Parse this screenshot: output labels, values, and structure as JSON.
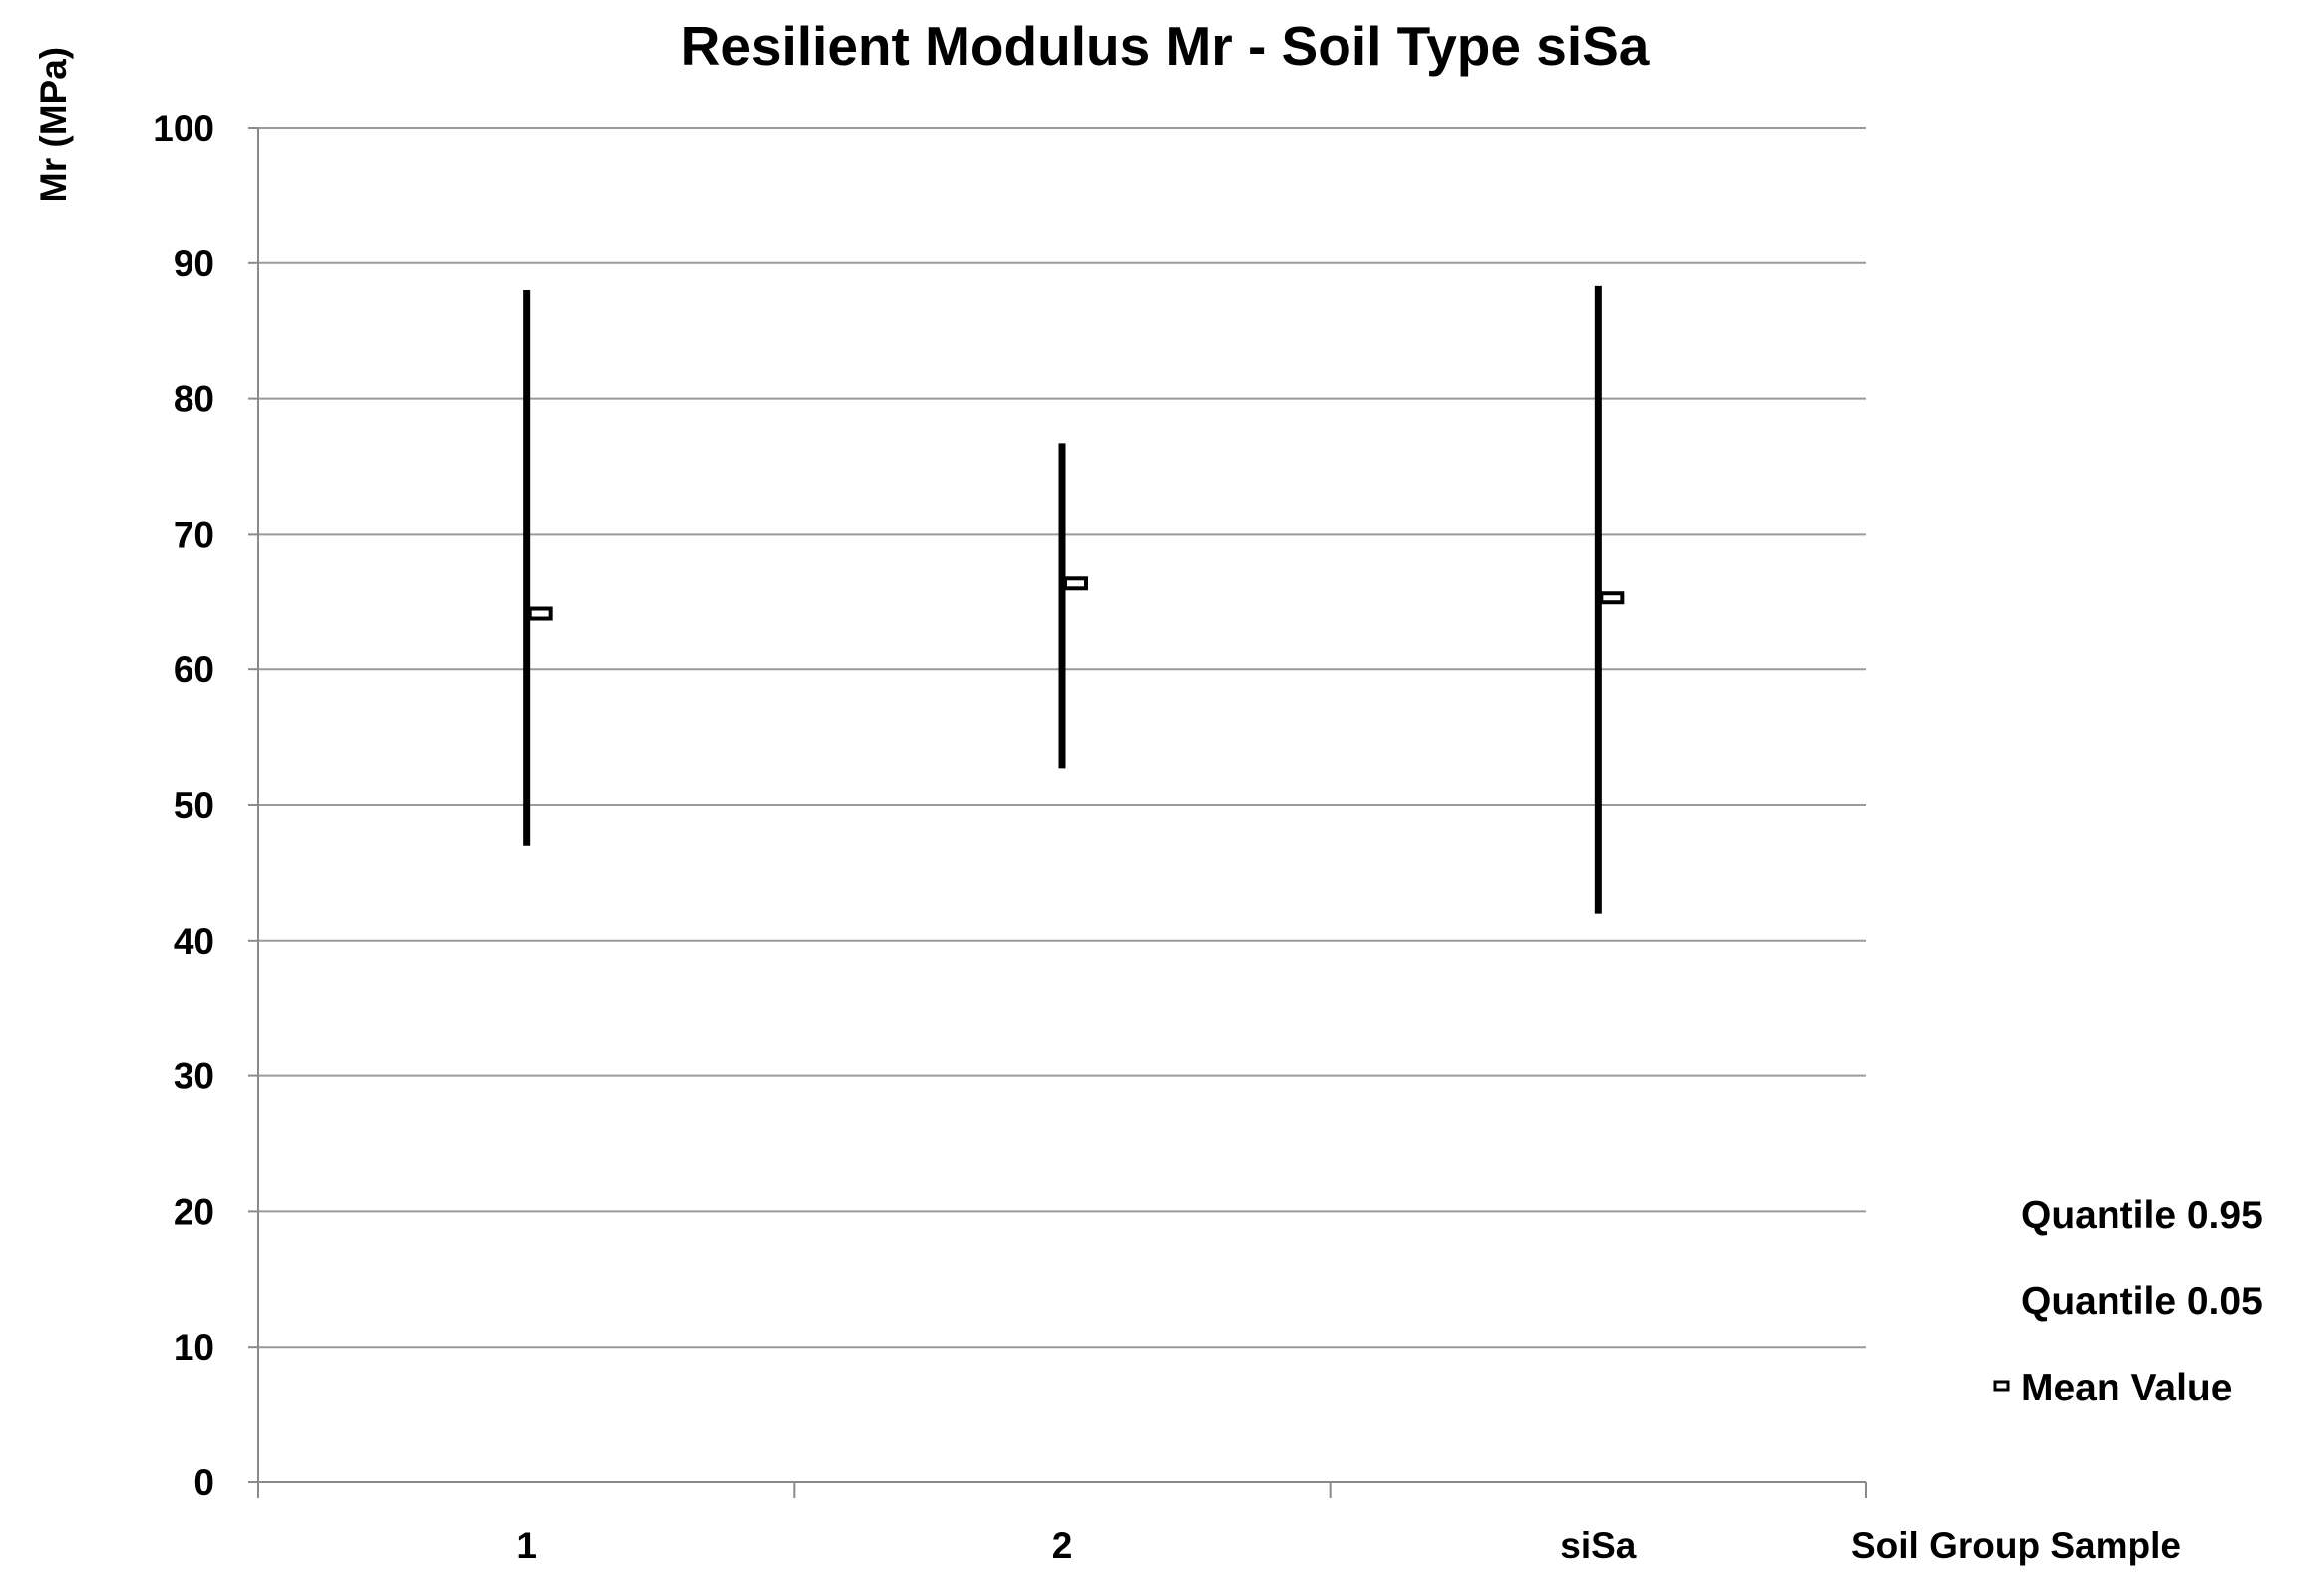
{
  "chart_data": {
    "type": "high-low-mean",
    "title": "Resilient Modulus Mr - Soil Type siSa",
    "ylabel": "Mr (MPa)",
    "xlabel": "Soil  Group Sample",
    "ylim": [
      0,
      100
    ],
    "yticks": [
      0,
      10,
      20,
      30,
      40,
      50,
      60,
      70,
      80,
      90,
      100
    ],
    "grid": true,
    "categories": [
      "1",
      "2",
      "siSa"
    ],
    "series": [
      {
        "name": "Quantile 0.95",
        "values": [
          88,
          76.7,
          88.3
        ]
      },
      {
        "name": "Quantile 0.05",
        "values": [
          47,
          52.7,
          42
        ]
      },
      {
        "name": "Mean Value",
        "values": [
          64.1,
          66.4,
          65.3
        ]
      }
    ],
    "legend_position": "right"
  }
}
